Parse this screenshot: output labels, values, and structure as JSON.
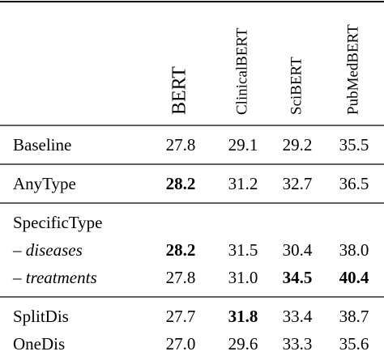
{
  "table": {
    "columns": [
      "BERT",
      "ClinicalBERT",
      "SciBERT",
      "PubMedBERT"
    ],
    "groups": [
      {
        "rows": [
          {
            "label": "Baseline",
            "cells": [
              {
                "text": "27.8"
              },
              {
                "text": "29.1"
              },
              {
                "text": "29.2"
              },
              {
                "text": "35.5"
              }
            ]
          }
        ]
      },
      {
        "rows": [
          {
            "label": "AnyType",
            "cells": [
              {
                "text": "28.2",
                "bold": true
              },
              {
                "text": "31.2"
              },
              {
                "text": "32.7"
              },
              {
                "text": "36.5"
              }
            ]
          }
        ]
      },
      {
        "rows": [
          {
            "label": "SpecificType",
            "cells": []
          },
          {
            "prefix": "–",
            "label": "diseases",
            "italic": true,
            "cells": [
              {
                "text": "28.2",
                "bold": true
              },
              {
                "text": "31.5"
              },
              {
                "text": "30.4"
              },
              {
                "text": "38.0"
              }
            ]
          },
          {
            "prefix": "–",
            "label": "treatments",
            "italic": true,
            "cells": [
              {
                "text": "27.8"
              },
              {
                "text": "31.0"
              },
              {
                "text": "34.5",
                "bold": true
              },
              {
                "text": "40.4",
                "bold": true
              }
            ]
          }
        ]
      },
      {
        "rows": [
          {
            "label": "SplitDis",
            "cells": [
              {
                "text": "27.7"
              },
              {
                "text": "31.8",
                "bold": true
              },
              {
                "text": "33.4"
              },
              {
                "text": "38.7"
              }
            ]
          },
          {
            "label": "OneDis",
            "cells": [
              {
                "text": "27.0"
              },
              {
                "text": "29.6"
              },
              {
                "text": "33.3"
              },
              {
                "text": "35.6"
              }
            ]
          }
        ]
      }
    ]
  }
}
